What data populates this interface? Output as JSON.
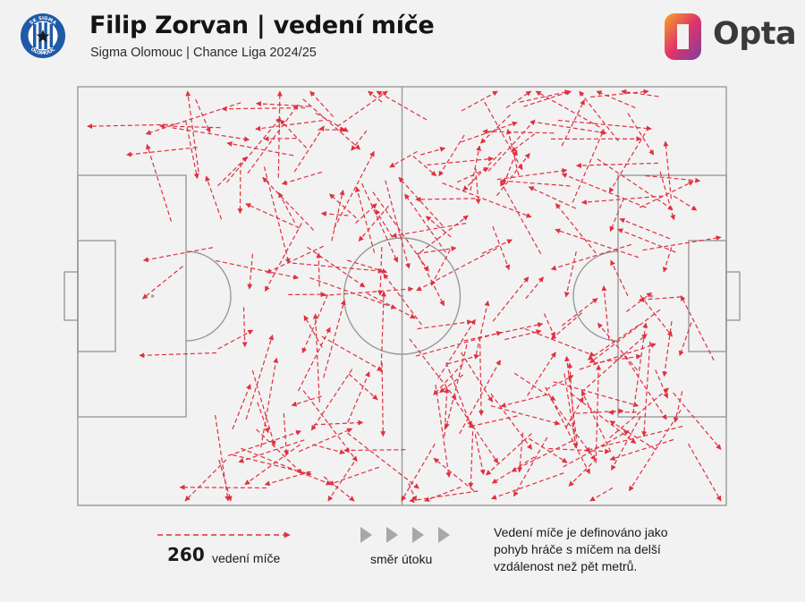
{
  "header": {
    "title": "Filip Zorvan | vedení míče",
    "subtitle": "Sigma Olomouc | Chance Liga 2024/25",
    "crest_ring_text_top": "SK SIGMA",
    "crest_ring_text_bottom": "OLOMOUC",
    "brand_name": "Opta"
  },
  "legend": {
    "count": "260",
    "count_label": "vedení míče",
    "direction_label": "směr útoku",
    "note": "Vedení míče je definováno jako pohyb hráče s míčem na delší vzdálenost než pět metrů."
  },
  "colors": {
    "background": "#f2f2f2",
    "pitch_lines": "#9a9a9a",
    "carry": "#e0303f",
    "direction_arrows": "#a8a8a8",
    "crest_blue": "#1f5aa6",
    "brand_gradient": [
      "#f39c1a",
      "#e2336a",
      "#7b3fa0"
    ]
  },
  "icons": {
    "crest": "club-crest-icon",
    "brand": "opta-logo-icon",
    "direction": "play-arrow-icon"
  }
}
